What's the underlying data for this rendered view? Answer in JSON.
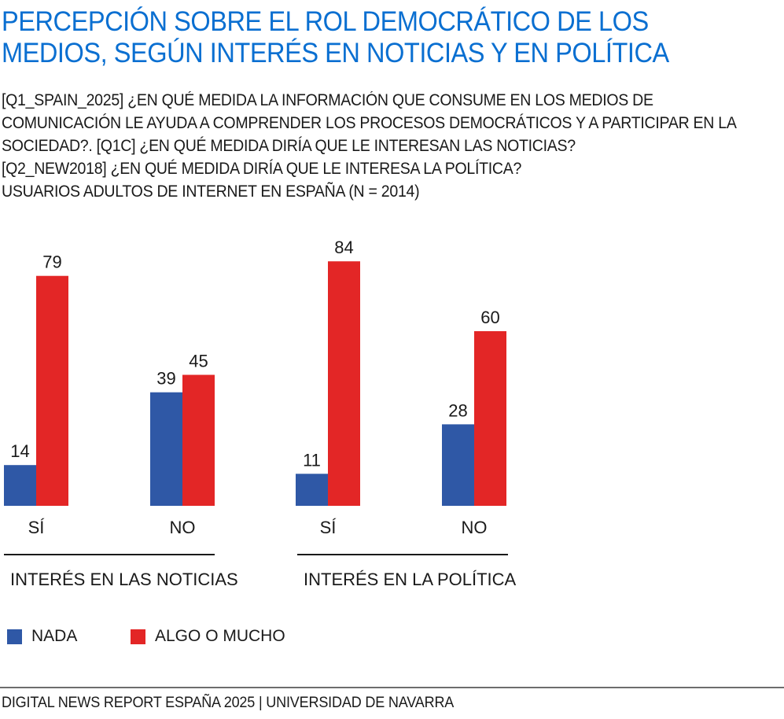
{
  "title_lines": [
    "PERCEPCIÓN SOBRE EL ROL DEMOCRÁTICO DE LOS",
    "MEDIOS, SEGÚN INTERÉS EN NOTICIAS Y EN POLÍTICA"
  ],
  "question_lines": [
    "[Q1_SPAIN_2025] ¿EN QUÉ MEDIDA LA INFORMACIÓN QUE CONSUME EN LOS MEDIOS DE",
    "COMUNICACIÓN LE AYUDA A COMPRENDER LOS PROCESOS DEMOCRÁTICOS Y A PARTICIPAR EN LA",
    "SOCIEDAD?. [Q1C] ¿EN QUÉ MEDIDA DIRÍA QUE LE INTERESAN LAS NOTICIAS?",
    "[Q2_NEW2018] ¿EN QUÉ MEDIDA DIRÍA QUE LE INTERESA LA POLÍTICA?",
    "USUARIOS ADULTOS DE INTERNET EN ESPAÑA (N = 2014)"
  ],
  "chart_data": {
    "type": "bar",
    "groups": [
      {
        "label": "INTERÉS EN LAS NOTICIAS",
        "categories": [
          "SÍ",
          "NO"
        ]
      },
      {
        "label": "INTERÉS EN LA POLÍTICA",
        "categories": [
          "SÍ",
          "NO"
        ]
      }
    ],
    "categories": [
      "SÍ",
      "NO",
      "SÍ",
      "NO"
    ],
    "series": [
      {
        "name": "NADA",
        "color": "#2f58a6",
        "values": [
          14,
          39,
          11,
          28
        ]
      },
      {
        "name": "ALGO O MUCHO",
        "color": "#e32626",
        "values": [
          79,
          45,
          84,
          60
        ]
      }
    ],
    "ylim": [
      0,
      100
    ],
    "grid": false,
    "legend_position": "bottom-left"
  },
  "footer": "DIGITAL NEWS REPORT ESPAÑA 2025 | UNIVERSIDAD DE NAVARRA"
}
